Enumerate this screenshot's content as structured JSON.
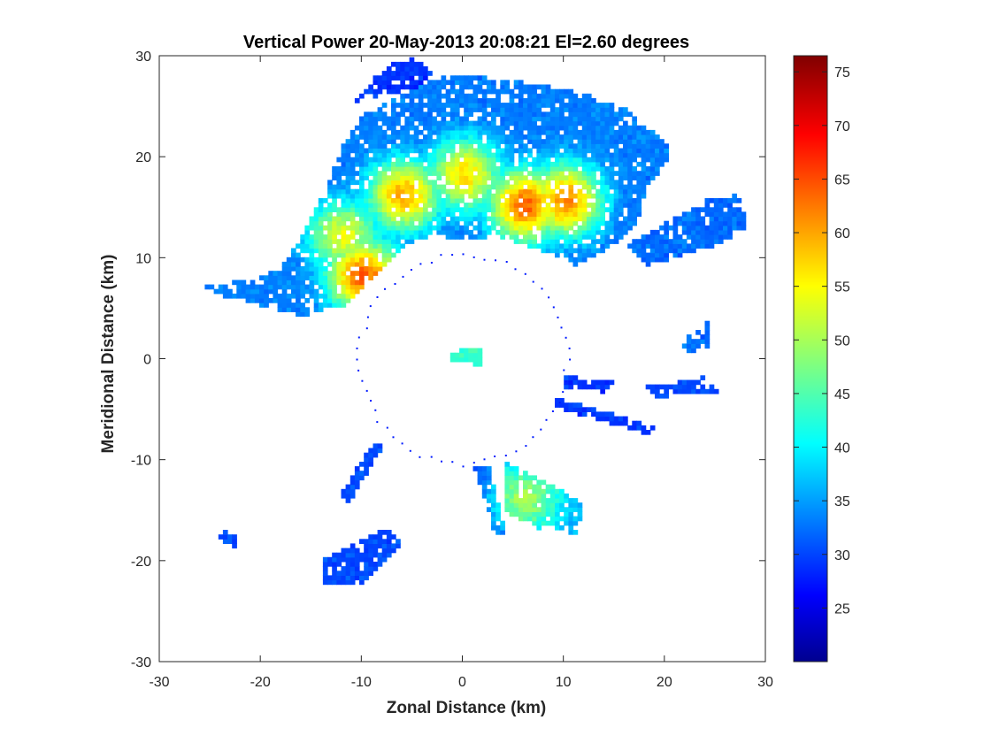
{
  "chart_data": {
    "type": "heatmap",
    "title": "Vertical Power 20-May-2013 20:08:21 El=2.60 degrees",
    "xlabel": "Zonal Distance (km)",
    "ylabel": "Meridional Distance (km)",
    "xlim": [
      -30,
      30
    ],
    "ylim": [
      -30,
      30
    ],
    "xticks": [
      -30,
      -20,
      -10,
      0,
      10,
      20,
      30
    ],
    "yticks": [
      -30,
      -20,
      -10,
      0,
      10,
      20,
      30
    ],
    "grid": false,
    "colormap": "jet",
    "colorbar": {
      "range": [
        20,
        76.5
      ],
      "ticks": [
        25,
        30,
        35,
        40,
        45,
        50,
        55,
        60,
        65,
        70,
        75
      ],
      "placement": "right"
    },
    "regions": [
      {
        "name": "main-storm",
        "points": [
          [
            -26,
            7
          ],
          [
            -22,
            7.5
          ],
          [
            -20,
            8
          ],
          [
            -18,
            9
          ],
          [
            -16,
            12
          ],
          [
            -14,
            16
          ],
          [
            -12,
            21
          ],
          [
            -10,
            24
          ],
          [
            -7,
            25.5
          ],
          [
            -4,
            27
          ],
          [
            -1,
            28
          ],
          [
            3,
            27.5
          ],
          [
            7,
            27
          ],
          [
            12,
            26
          ],
          [
            16,
            24.5
          ],
          [
            20,
            21
          ],
          [
            20,
            19
          ],
          [
            18,
            17
          ],
          [
            17,
            13
          ],
          [
            14,
            10.5
          ],
          [
            11,
            9
          ],
          [
            9,
            10
          ],
          [
            6,
            11
          ],
          [
            3,
            12
          ],
          [
            0,
            11.5
          ],
          [
            -3,
            12
          ],
          [
            -6,
            11
          ],
          [
            -9,
            8
          ],
          [
            -12,
            5
          ],
          [
            -16,
            4
          ],
          [
            -20,
            5
          ],
          [
            -24,
            6
          ]
        ],
        "base": 30
      },
      {
        "name": "top-arc",
        "points": [
          [
            -11,
            25
          ],
          [
            -9,
            27.5
          ],
          [
            -7,
            29
          ],
          [
            -5,
            29.5
          ],
          [
            -3,
            28
          ],
          [
            -5,
            26.5
          ],
          [
            -8,
            26
          ]
        ],
        "base": 26
      },
      {
        "name": "northeast-band",
        "points": [
          [
            16,
            11
          ],
          [
            24,
            15.5
          ],
          [
            27,
            16
          ],
          [
            28,
            13
          ],
          [
            25,
            11
          ],
          [
            18,
            9
          ]
        ],
        "base": 29
      },
      {
        "name": "southeast-blob",
        "points": [
          [
            4,
            -10.5
          ],
          [
            9,
            -13
          ],
          [
            12,
            -14.5
          ],
          [
            11,
            -17.5
          ],
          [
            7,
            -17
          ],
          [
            4,
            -15.5
          ]
        ],
        "base": 33
      },
      {
        "name": "south-strip",
        "points": [
          [
            1,
            -11
          ],
          [
            2.5,
            -11
          ],
          [
            4,
            -17.5
          ],
          [
            3,
            -17.5
          ]
        ],
        "base": 27
      },
      {
        "name": "southwest-strip",
        "points": [
          [
            -9,
            -8.5
          ],
          [
            -8,
            -8.8
          ],
          [
            -11.5,
            -14.5
          ],
          [
            -12.5,
            -14
          ]
        ],
        "base": 27
      },
      {
        "name": "south-cluster",
        "points": [
          [
            -14,
            -20
          ],
          [
            -8,
            -17
          ],
          [
            -6,
            -18.5
          ],
          [
            -10,
            -22.5
          ],
          [
            -14,
            -22.5
          ]
        ],
        "base": 27
      },
      {
        "name": "east-echo-1",
        "points": [
          [
            22,
            2
          ],
          [
            24,
            3.5
          ],
          [
            24,
            1
          ],
          [
            21,
            0
          ]
        ],
        "base": 29
      },
      {
        "name": "east-echo-2",
        "points": [
          [
            18,
            -3
          ],
          [
            24,
            -2
          ],
          [
            25,
            -3.5
          ],
          [
            19,
            -4
          ]
        ],
        "base": 27
      },
      {
        "name": "east-echo-3",
        "points": [
          [
            9,
            -4
          ],
          [
            19,
            -7
          ],
          [
            19,
            -8
          ],
          [
            9,
            -5
          ]
        ],
        "base": 26
      },
      {
        "name": "east-echo-4",
        "points": [
          [
            10,
            -2
          ],
          [
            15,
            -2.5
          ],
          [
            14,
            -3.5
          ],
          [
            10,
            -3
          ]
        ],
        "base": 26
      },
      {
        "name": "far-west-speck",
        "points": [
          [
            -24.5,
            -17
          ],
          [
            -23,
            -17.5
          ],
          [
            -22,
            -19
          ],
          [
            -24,
            -18.5
          ]
        ],
        "base": 27
      },
      {
        "name": "center-clutter",
        "points": [
          [
            -1.5,
            0.5
          ],
          [
            1.5,
            0.8
          ],
          [
            1.5,
            -0.8
          ],
          [
            -1.5,
            -0.6
          ]
        ],
        "base": 40
      }
    ],
    "peaks": [
      {
        "x": -10,
        "y": 8,
        "value": 62
      },
      {
        "x": -6,
        "y": 16,
        "value": 58
      },
      {
        "x": 0,
        "y": 18,
        "value": 55
      },
      {
        "x": 6,
        "y": 15,
        "value": 62
      },
      {
        "x": 10,
        "y": 15.5,
        "value": 60
      },
      {
        "x": -12,
        "y": 12,
        "value": 52
      },
      {
        "x": 6,
        "y": -14,
        "value": 48
      }
    ]
  }
}
